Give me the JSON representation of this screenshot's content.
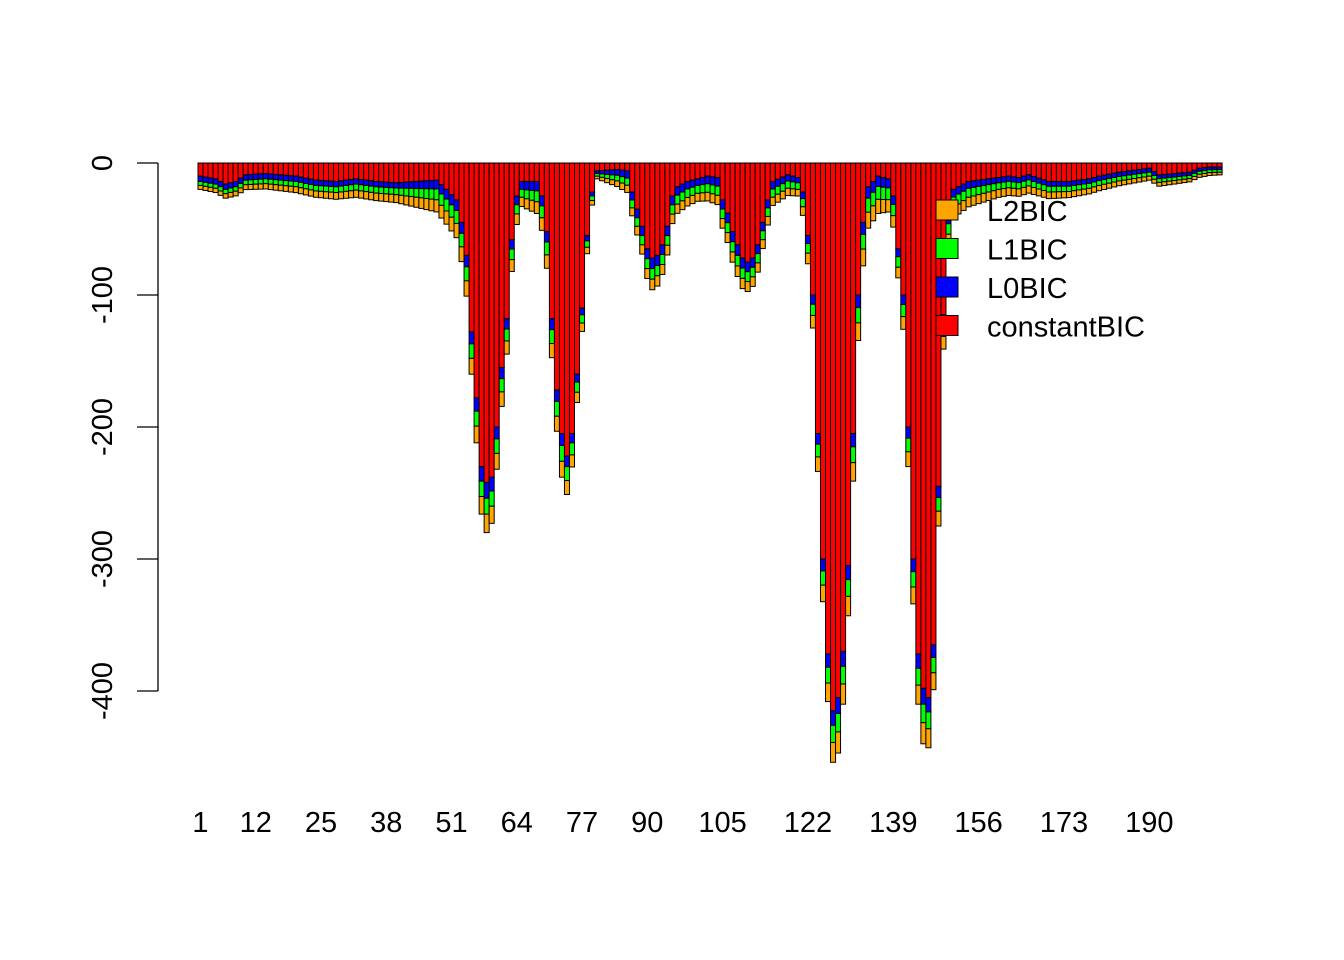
{
  "chart_data": {
    "type": "bar",
    "stacked": true,
    "direction": "negative",
    "categories_count": 204,
    "x_tick_labels": [
      "1",
      "12",
      "25",
      "38",
      "51",
      "64",
      "77",
      "90",
      "105",
      "122",
      "139",
      "156",
      "173",
      "190"
    ],
    "y_ticks": [
      0,
      -100,
      -200,
      -300,
      -400
    ],
    "ylim": [
      -460,
      0
    ],
    "grid": false,
    "legend_position": "top-right",
    "series_order": [
      "constantBIC",
      "L0BIC",
      "L1BIC",
      "L2BIC"
    ],
    "series": [
      {
        "name": "constantBIC",
        "color": "#ff0000",
        "profile": [
          [
            1,
            10
          ],
          [
            4,
            12
          ],
          [
            6,
            16
          ],
          [
            8,
            14
          ],
          [
            10,
            9
          ],
          [
            14,
            8
          ],
          [
            20,
            10
          ],
          [
            24,
            13
          ],
          [
            28,
            14
          ],
          [
            32,
            12
          ],
          [
            36,
            14
          ],
          [
            40,
            15
          ],
          [
            44,
            14
          ],
          [
            48,
            13
          ],
          [
            50,
            20
          ],
          [
            52,
            28
          ],
          [
            53,
            45
          ],
          [
            54,
            70
          ],
          [
            55,
            128
          ],
          [
            56,
            178
          ],
          [
            57,
            230
          ],
          [
            58,
            242
          ],
          [
            59,
            238
          ],
          [
            60,
            200
          ],
          [
            61,
            155
          ],
          [
            62,
            118
          ],
          [
            63,
            58
          ],
          [
            64,
            25
          ],
          [
            65,
            14
          ],
          [
            68,
            14
          ],
          [
            69,
            25
          ],
          [
            70,
            52
          ],
          [
            71,
            118
          ],
          [
            72,
            172
          ],
          [
            73,
            205
          ],
          [
            74,
            222
          ],
          [
            75,
            205
          ],
          [
            76,
            160
          ],
          [
            77,
            110
          ],
          [
            78,
            55
          ],
          [
            79,
            22
          ],
          [
            80,
            6
          ],
          [
            84,
            5
          ],
          [
            86,
            6
          ],
          [
            87,
            22
          ],
          [
            88,
            35
          ],
          [
            89,
            48
          ],
          [
            90,
            65
          ],
          [
            91,
            72
          ],
          [
            92,
            70
          ],
          [
            93,
            62
          ],
          [
            94,
            48
          ],
          [
            95,
            25
          ],
          [
            96,
            18
          ],
          [
            98,
            14
          ],
          [
            100,
            12
          ],
          [
            102,
            10
          ],
          [
            104,
            11
          ],
          [
            105,
            28
          ],
          [
            106,
            38
          ],
          [
            107,
            52
          ],
          [
            108,
            62
          ],
          [
            109,
            72
          ],
          [
            110,
            75
          ],
          [
            111,
            72
          ],
          [
            112,
            62
          ],
          [
            113,
            45
          ],
          [
            114,
            28
          ],
          [
            115,
            14
          ],
          [
            118,
            9
          ],
          [
            120,
            11
          ],
          [
            121,
            22
          ],
          [
            122,
            55
          ],
          [
            123,
            100
          ],
          [
            124,
            205
          ],
          [
            125,
            300
          ],
          [
            126,
            372
          ],
          [
            127,
            415
          ],
          [
            128,
            405
          ],
          [
            129,
            370
          ],
          [
            130,
            305
          ],
          [
            131,
            205
          ],
          [
            132,
            100
          ],
          [
            133,
            45
          ],
          [
            134,
            18
          ],
          [
            136,
            10
          ],
          [
            138,
            12
          ],
          [
            139,
            25
          ],
          [
            140,
            65
          ],
          [
            141,
            100
          ],
          [
            142,
            200
          ],
          [
            143,
            300
          ],
          [
            144,
            372
          ],
          [
            145,
            398
          ],
          [
            146,
            405
          ],
          [
            147,
            365
          ],
          [
            148,
            245
          ],
          [
            149,
            115
          ],
          [
            150,
            40
          ],
          [
            151,
            20
          ],
          [
            154,
            14
          ],
          [
            158,
            12
          ],
          [
            162,
            10
          ],
          [
            164,
            11
          ],
          [
            166,
            9
          ],
          [
            170,
            14
          ],
          [
            174,
            14
          ],
          [
            178,
            12
          ],
          [
            180,
            10
          ],
          [
            184,
            7
          ],
          [
            188,
            5
          ],
          [
            190,
            4
          ],
          [
            192,
            9
          ],
          [
            198,
            7
          ],
          [
            200,
            4
          ],
          [
            202,
            3
          ],
          [
            204,
            3
          ]
        ]
      },
      {
        "name": "L0BIC",
        "color": "#0000ff",
        "profile": [
          [
            1,
            4
          ],
          [
            40,
            4
          ],
          [
            55,
            9
          ],
          [
            58,
            12
          ],
          [
            60,
            9
          ],
          [
            65,
            6
          ],
          [
            73,
            9
          ],
          [
            80,
            2
          ],
          [
            87,
            6
          ],
          [
            91,
            8
          ],
          [
            100,
            5
          ],
          [
            108,
            8
          ],
          [
            120,
            4
          ],
          [
            126,
            10
          ],
          [
            128,
            12
          ],
          [
            131,
            10
          ],
          [
            140,
            6
          ],
          [
            145,
            12
          ],
          [
            150,
            6
          ],
          [
            160,
            4
          ],
          [
            190,
            3
          ],
          [
            204,
            2
          ]
        ]
      },
      {
        "name": "L1BIC",
        "color": "#00ff00",
        "profile": [
          [
            1,
            3
          ],
          [
            40,
            5
          ],
          [
            55,
            11
          ],
          [
            58,
            12
          ],
          [
            60,
            11
          ],
          [
            65,
            6
          ],
          [
            73,
            12
          ],
          [
            80,
            2
          ],
          [
            87,
            6
          ],
          [
            91,
            8
          ],
          [
            100,
            6
          ],
          [
            108,
            8
          ],
          [
            120,
            5
          ],
          [
            126,
            12
          ],
          [
            128,
            14
          ],
          [
            131,
            12
          ],
          [
            140,
            8
          ],
          [
            145,
            14
          ],
          [
            150,
            8
          ],
          [
            160,
            5
          ],
          [
            190,
            3
          ],
          [
            204,
            2
          ]
        ]
      },
      {
        "name": "L2BIC",
        "color": "#ffa500",
        "profile": [
          [
            1,
            3
          ],
          [
            40,
            6
          ],
          [
            55,
            12
          ],
          [
            58,
            14
          ],
          [
            60,
            12
          ],
          [
            65,
            7
          ],
          [
            73,
            12
          ],
          [
            80,
            2
          ],
          [
            87,
            6
          ],
          [
            91,
            8
          ],
          [
            100,
            6
          ],
          [
            108,
            8
          ],
          [
            120,
            5
          ],
          [
            126,
            14
          ],
          [
            128,
            16
          ],
          [
            131,
            14
          ],
          [
            140,
            8
          ],
          [
            145,
            16
          ],
          [
            150,
            8
          ],
          [
            160,
            6
          ],
          [
            190,
            3
          ],
          [
            204,
            2
          ]
        ]
      }
    ],
    "legend": [
      {
        "label": "L2BIC",
        "color": "#ffa500"
      },
      {
        "label": "L1BIC",
        "color": "#00ff00"
      },
      {
        "label": "L0BIC",
        "color": "#0000ff"
      },
      {
        "label": "constantBIC",
        "color": "#ff0000"
      }
    ]
  }
}
